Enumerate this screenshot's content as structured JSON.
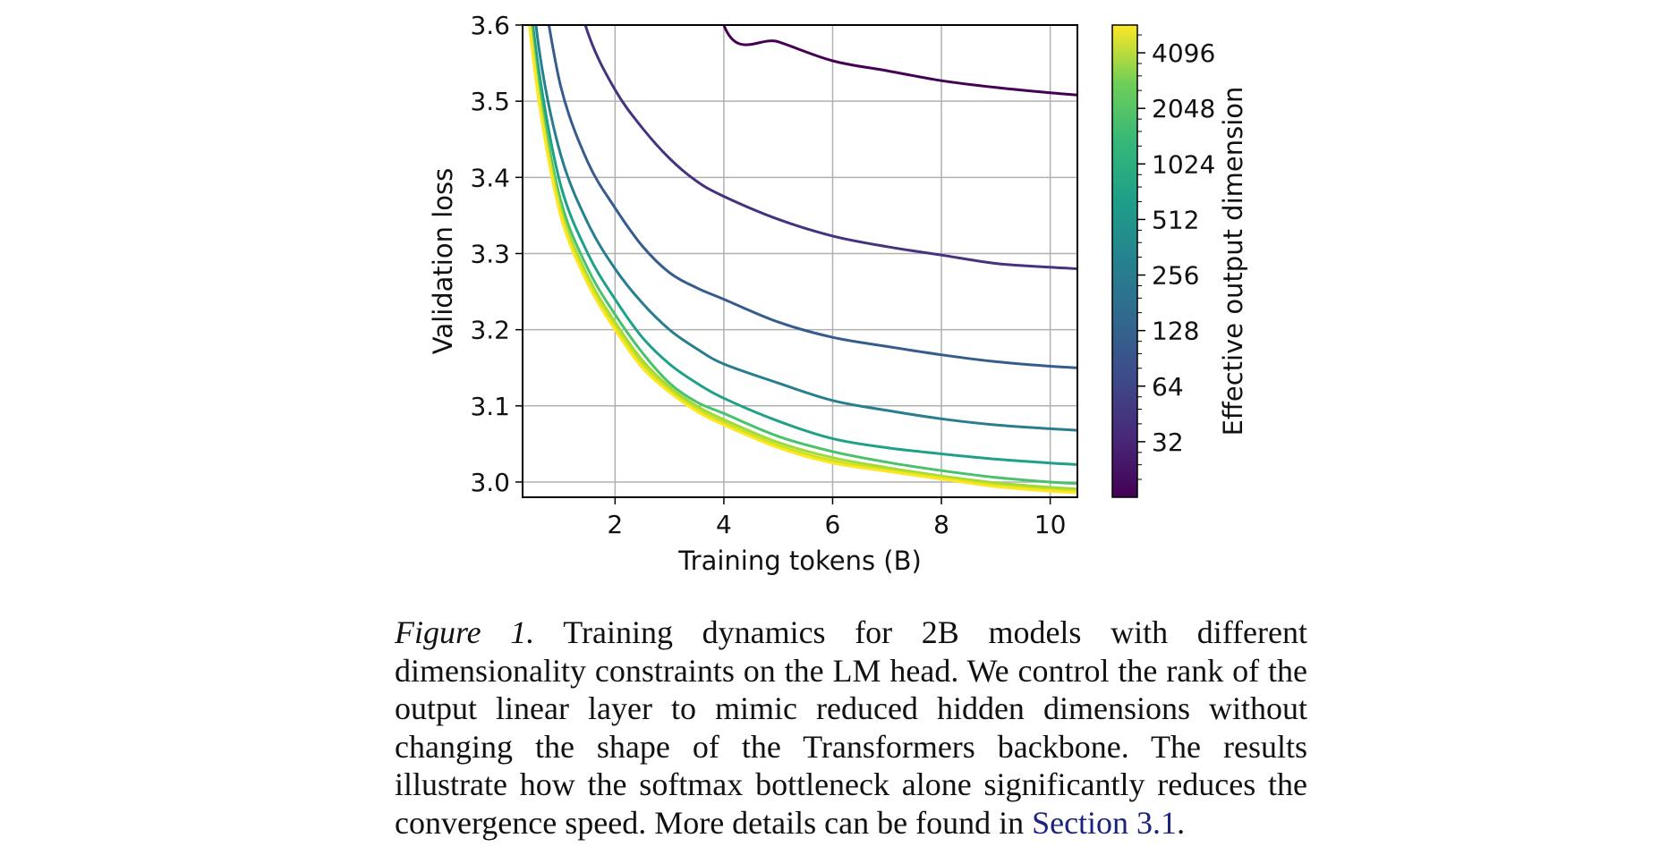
{
  "chart_data": {
    "type": "line",
    "xlabel": "Training tokens (B)",
    "ylabel": "Validation loss",
    "xlim": [
      0.3,
      10.5
    ],
    "ylim": [
      2.98,
      3.6
    ],
    "xticks": [
      2,
      4,
      6,
      8,
      10
    ],
    "yticks": [
      3.0,
      3.1,
      3.2,
      3.3,
      3.4,
      3.5,
      3.6
    ],
    "grid": true,
    "colorbar": {
      "label": "Effective output dimension",
      "scale": "log2",
      "range": [
        16,
        5792
      ],
      "ticks": [
        32,
        64,
        128,
        256,
        512,
        1024,
        2048,
        4096
      ],
      "colormap": "viridis"
    },
    "x": [
      0.3,
      0.6,
      1,
      1.5,
      2,
      2.5,
      3,
      3.5,
      4,
      5,
      6,
      7,
      8,
      9,
      10,
      10.5
    ],
    "series": [
      {
        "color_value": 16,
        "color": "#440154",
        "values": [
          null,
          null,
          null,
          null,
          null,
          null,
          null,
          3.86,
          3.6,
          3.578,
          3.553,
          3.54,
          3.527,
          3.518,
          3.511,
          3.508
        ]
      },
      {
        "color_value": 32,
        "color": "#46327e",
        "values": [
          null,
          null,
          3.72,
          3.59,
          3.515,
          3.465,
          3.425,
          3.395,
          3.375,
          3.345,
          3.323,
          3.309,
          3.298,
          3.287,
          3.282,
          3.28
        ]
      },
      {
        "color_value": 64,
        "color": "#365c8d",
        "values": [
          null,
          3.68,
          3.52,
          3.42,
          3.36,
          3.31,
          3.275,
          3.255,
          3.24,
          3.21,
          3.19,
          3.178,
          3.167,
          3.158,
          3.152,
          3.15
        ]
      },
      {
        "color_value": 128,
        "color": "#277f8e",
        "values": [
          3.78,
          3.57,
          3.43,
          3.34,
          3.28,
          3.235,
          3.2,
          3.175,
          3.155,
          3.13,
          3.107,
          3.094,
          3.083,
          3.075,
          3.07,
          3.068
        ]
      },
      {
        "color_value": 256,
        "color": "#1fa187",
        "values": [
          3.72,
          3.54,
          3.39,
          3.3,
          3.24,
          3.19,
          3.155,
          3.13,
          3.11,
          3.08,
          3.057,
          3.045,
          3.037,
          3.03,
          3.025,
          3.023
        ]
      },
      {
        "color_value": 512,
        "color": "#4ac16d",
        "values": [
          3.7,
          3.52,
          3.37,
          3.28,
          3.22,
          3.17,
          3.13,
          3.105,
          3.09,
          3.06,
          3.04,
          3.026,
          3.015,
          3.006,
          3.0,
          2.998
        ]
      },
      {
        "color_value": 1024,
        "color": "#a0da39",
        "values": [
          3.69,
          3.51,
          3.36,
          3.27,
          3.21,
          3.16,
          3.125,
          3.1,
          3.082,
          3.052,
          3.032,
          3.019,
          3.008,
          2.999,
          2.993,
          2.991
        ]
      },
      {
        "color_value": 2048,
        "color": "#cde11d",
        "values": [
          3.69,
          3.505,
          3.355,
          3.265,
          3.205,
          3.155,
          3.121,
          3.096,
          3.078,
          3.048,
          3.028,
          3.016,
          3.006,
          2.996,
          2.99,
          2.988
        ]
      },
      {
        "color_value": 4096,
        "color": "#fde725",
        "values": [
          3.68,
          3.5,
          3.35,
          3.26,
          3.2,
          3.15,
          3.118,
          3.093,
          3.075,
          3.045,
          3.025,
          3.014,
          3.004,
          2.994,
          2.988,
          2.986
        ]
      }
    ]
  },
  "caption": {
    "label": "Figure 1.",
    "text": " Training dynamics for 2B models with different dimensionality constraints on the LM head. We control the rank of the output linear layer to mimic reduced hidden dimensions without changing the shape of the Transformers backbone. The results illustrate how the softmax bottleneck alone significantly reduces the convergence speed. More details can be found in ",
    "link": "Section 3.1",
    "end": "."
  }
}
